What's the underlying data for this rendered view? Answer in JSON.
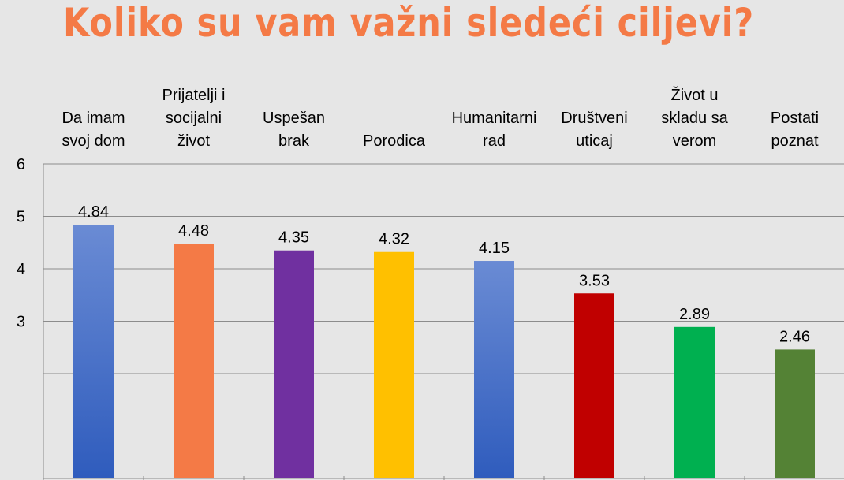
{
  "title": "Koliko su vam važni sledeći ciljevi?",
  "chart_data": {
    "type": "bar",
    "title": "Koliko su vam važni sledeći ciljevi?",
    "categories": [
      [
        "Da imam",
        "svoj dom"
      ],
      [
        "Prijatelji i",
        "socijalni",
        "život"
      ],
      [
        "Uspešan",
        "brak"
      ],
      [
        "Porodica"
      ],
      [
        "Humanitarni",
        "rad"
      ],
      [
        "Društveni",
        "uticaj"
      ],
      [
        "Život u",
        "skladu sa",
        "verom"
      ],
      [
        "Postati",
        "poznat"
      ]
    ],
    "values": [
      4.84,
      4.48,
      4.35,
      4.32,
      4.15,
      3.53,
      2.89,
      2.46
    ],
    "value_labels": [
      "4.84",
      "4.48",
      "4.35",
      "4.32",
      "4.15",
      "3.53",
      "2.89",
      "2.46"
    ],
    "colors": [
      "#4472c4",
      "#f47a46",
      "#7030a0",
      "#ffc000",
      "#4472c4",
      "#c00000",
      "#00b050",
      "#548235"
    ],
    "gradient_bars": [
      0,
      4
    ],
    "ylim": [
      0,
      6
    ],
    "yticks": [
      0,
      1,
      2,
      3,
      4,
      5,
      6
    ],
    "ytick_labels": [
      "",
      "",
      "",
      "3",
      "4",
      "5",
      "6"
    ],
    "grid": true,
    "legend": "none",
    "xlabel": "",
    "ylabel": ""
  }
}
